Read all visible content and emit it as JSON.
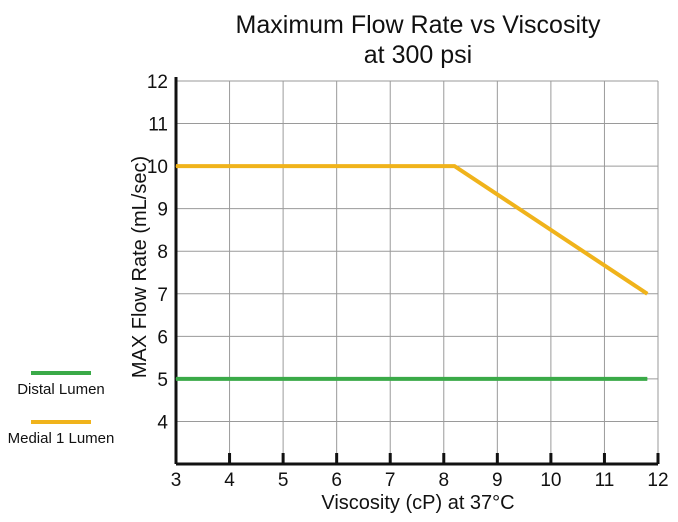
{
  "chart_data": {
    "type": "line",
    "title": "Maximum Flow Rate vs Viscosity",
    "subtitle": "at 300 psi",
    "xlabel": "Viscosity (cP) at 37°C",
    "ylabel": "MAX Flow Rate (mL/sec)",
    "xlim": [
      3,
      12
    ],
    "ylim": [
      3,
      12
    ],
    "x_ticks": [
      "3",
      "4",
      "5",
      "6",
      "7",
      "8",
      "9",
      "10",
      "11",
      "12"
    ],
    "y_ticks": [
      "4",
      "5",
      "6",
      "7",
      "8",
      "9",
      "10",
      "11",
      "12"
    ],
    "grid": true,
    "legend_position": "left",
    "series": [
      {
        "name": "Distal Lumen",
        "color": "#3aaa48",
        "points": [
          {
            "x": 3.0,
            "y": 5.0
          },
          {
            "x": 11.8,
            "y": 5.0
          }
        ]
      },
      {
        "name": "Medial 1 Lumen",
        "color": "#f0b31b",
        "points": [
          {
            "x": 3.0,
            "y": 10.0
          },
          {
            "x": 8.2,
            "y": 10.0
          },
          {
            "x": 11.8,
            "y": 7.0
          }
        ]
      }
    ]
  }
}
